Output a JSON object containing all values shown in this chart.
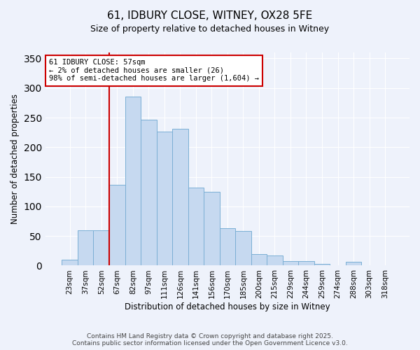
{
  "title": "61, IDBURY CLOSE, WITNEY, OX28 5FE",
  "subtitle": "Size of property relative to detached houses in Witney",
  "xlabel": "Distribution of detached houses by size in Witney",
  "ylabel": "Number of detached properties",
  "bar_labels": [
    "23sqm",
    "37sqm",
    "52sqm",
    "67sqm",
    "82sqm",
    "97sqm",
    "111sqm",
    "126sqm",
    "141sqm",
    "156sqm",
    "170sqm",
    "185sqm",
    "200sqm",
    "215sqm",
    "229sqm",
    "244sqm",
    "259sqm",
    "274sqm",
    "288sqm",
    "303sqm",
    "318sqm"
  ],
  "bar_values": [
    10,
    60,
    60,
    137,
    285,
    247,
    226,
    231,
    132,
    125,
    63,
    58,
    19,
    17,
    8,
    8,
    3,
    0,
    6,
    0,
    0
  ],
  "bar_color": "#c6d9f0",
  "bar_edge_color": "#7bafd4",
  "vline_x": 2.5,
  "vline_color": "#cc0000",
  "annotation_title": "61 IDBURY CLOSE: 57sqm",
  "annotation_line1": "← 2% of detached houses are smaller (26)",
  "annotation_line2": "98% of semi-detached houses are larger (1,604) →",
  "annotation_box_color": "#ffffff",
  "annotation_box_edge": "#cc0000",
  "ylim": [
    0,
    360
  ],
  "yticks": [
    0,
    50,
    100,
    150,
    200,
    250,
    300,
    350
  ],
  "footer1": "Contains HM Land Registry data © Crown copyright and database right 2025.",
  "footer2": "Contains public sector information licensed under the Open Government Licence v3.0.",
  "bg_color": "#eef2fb",
  "grid_color": "#ffffff",
  "title_fontsize": 11,
  "subtitle_fontsize": 9,
  "axis_fontsize": 8.5,
  "tick_fontsize": 7.5,
  "annotation_fontsize": 7.5,
  "footer_fontsize": 6.5
}
